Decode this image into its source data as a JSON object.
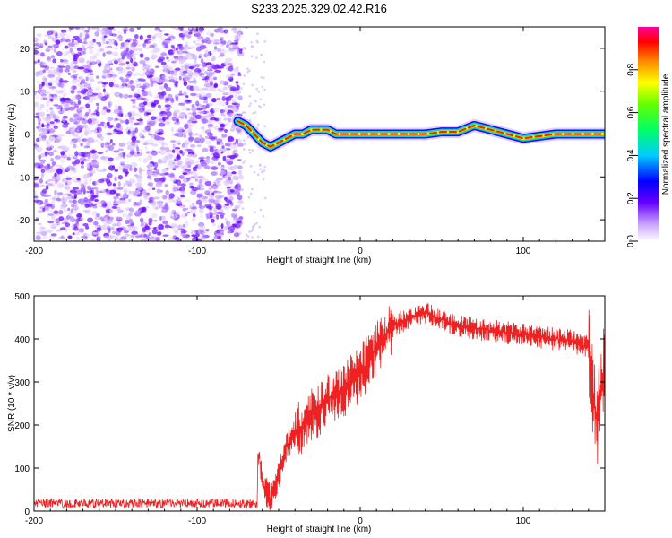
{
  "title": "S233.2025.329.02.42.R16",
  "colors": {
    "axis": "#000000",
    "snr_line": "#ee2222",
    "grid": "#cccccc"
  },
  "chart_data": [
    {
      "type": "heatmap",
      "title": "S233.2025.329.02.42.R16",
      "xlabel": "Height of straight line (km)",
      "ylabel": "Frequency (Hz)",
      "xlim": [
        -200,
        150
      ],
      "ylim": [
        -25,
        25
      ],
      "x_tick_labels": [
        "-200",
        "-100",
        "0",
        "100"
      ],
      "y_tick_labels": [
        "20",
        "10",
        "0",
        "-10",
        "-20"
      ],
      "noise_region": {
        "x_start": -200,
        "x_end": -73,
        "description": "scattered low-amplitude noise"
      },
      "carrier_trace": {
        "x": [
          -75,
          -70,
          -65,
          -60,
          -55,
          -50,
          -45,
          -40,
          -35,
          -30,
          -25,
          -20,
          -15,
          -10,
          -5,
          0,
          20,
          40,
          50,
          60,
          70,
          75,
          80,
          90,
          100,
          120,
          150
        ],
        "y": [
          3,
          2,
          0,
          -2,
          -3,
          -2,
          -1,
          0,
          0,
          1,
          1,
          1,
          0,
          0,
          0,
          0,
          0,
          0,
          0.5,
          0.5,
          2,
          1.5,
          1,
          0,
          -1,
          0,
          0
        ]
      },
      "colorbar": {
        "label": "Normalized spectral amplitude",
        "range": [
          0.0,
          1.0
        ],
        "tick_labels": [
          "0.0",
          "0.2",
          "0.4",
          "0.6",
          "0.8"
        ]
      }
    },
    {
      "type": "line",
      "xlabel": "Height of straight line (km)",
      "ylabel": "SNR (10 * v/v)",
      "xlim": [
        -200,
        150
      ],
      "ylim": [
        0,
        500
      ],
      "x_tick_labels": [
        "-200",
        "-100",
        "0",
        "100"
      ],
      "y_tick_labels": [
        "500",
        "400",
        "300",
        "200",
        "100",
        "0"
      ],
      "series": [
        {
          "name": "SNR",
          "x": [
            -200,
            -150,
            -100,
            -75,
            -65,
            -62,
            -60,
            -55,
            -50,
            -45,
            -40,
            -30,
            -20,
            -10,
            0,
            10,
            20,
            30,
            40,
            50,
            60,
            80,
            100,
            120,
            130,
            140,
            145,
            150
          ],
          "y": [
            20,
            20,
            20,
            20,
            22,
            130,
            60,
            30,
            80,
            150,
            180,
            220,
            260,
            280,
            320,
            380,
            430,
            450,
            460,
            445,
            430,
            420,
            410,
            400,
            395,
            380,
            200,
            340
          ]
        }
      ]
    }
  ]
}
